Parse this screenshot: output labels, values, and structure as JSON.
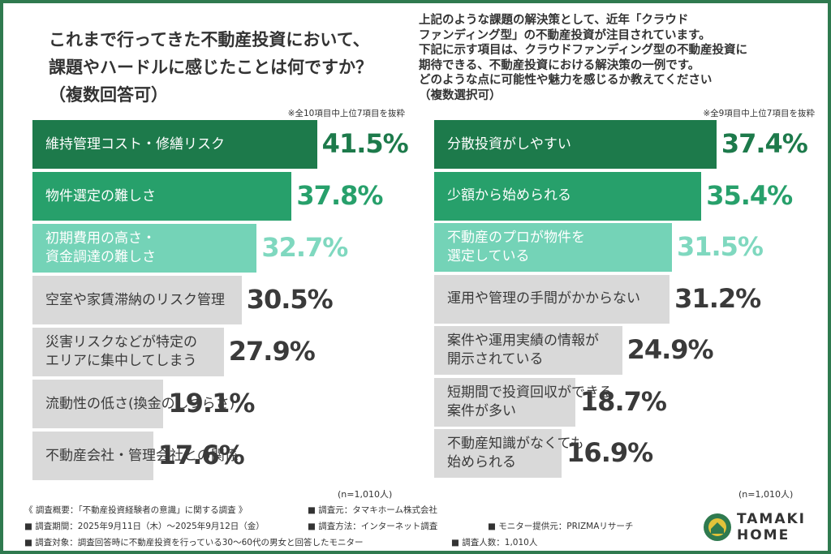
{
  "chart_data": [
    {
      "type": "bar",
      "orientation": "horizontal",
      "title": "これまで行ってきた不動産投資において、\n課題やハードルに感じたことは何ですか？\n（複数回答可）",
      "note": "※全10項目中上位7項目を抜粋",
      "sample": "(n=1,010人)",
      "categories": [
        "維持管理コスト・修繕リスク",
        "物件選定の難しさ",
        "初期費用の高さ・\n資金調達の難しさ",
        "空室や家賃滞納のリスク管理",
        "災害リスクなどが特定の\nエリアに集中してしまう",
        "流動性の低さ(換金のしづらさ)",
        "不動産会社・管理会社との関係"
      ],
      "values": [
        41.5,
        37.8,
        32.7,
        30.5,
        27.9,
        19.1,
        17.6
      ],
      "value_labels": [
        "41.5%",
        "37.8%",
        "32.7%",
        "30.5%",
        "27.9%",
        "19.1%",
        "17.6%"
      ],
      "colors": [
        "#1d7a4b",
        "#27a06b",
        "#74d3b7",
        "#d9d9d9",
        "#d9d9d9",
        "#d9d9d9",
        "#d9d9d9"
      ],
      "text_colors": [
        "#ffffff",
        "#ffffff",
        "#ffffff",
        "#3a3a3a",
        "#3a3a3a",
        "#3a3a3a",
        "#3a3a3a"
      ],
      "label_colors": [
        "#1d7a4b",
        "#27a06b",
        "#7fd8bf",
        "#3a3a3a",
        "#3a3a3a",
        "#3a3a3a",
        "#3a3a3a"
      ]
    },
    {
      "type": "bar",
      "orientation": "horizontal",
      "title": "上記のような課題の解決策として、近年「クラウド\nファンディング型」の不動産投資が注目されています。\n下記に示す項目は、クラウドファンディング型の不動産投資に\n期待できる、不動産投資における解決策の一例です。\nどのような点に可能性や魅力を感じるか教えてください\n（複数選択可）",
      "note": "※全9項目中上位7項目を抜粋",
      "sample": "(n=1,010人)",
      "categories": [
        "分散投資がしやすい",
        "少額から始められる",
        "不動産のプロが物件を\n選定している",
        "運用や管理の手間がかからない",
        "案件や運用実績の情報が\n開示されている",
        "短期間で投資回収ができる\n案件が多い",
        "不動産知識がなくても\n始められる"
      ],
      "values": [
        37.4,
        35.4,
        31.5,
        31.2,
        24.9,
        18.7,
        16.9
      ],
      "value_labels": [
        "37.4%",
        "35.4%",
        "31.5%",
        "31.2%",
        "24.9%",
        "18.7%",
        "16.9%"
      ],
      "colors": [
        "#1d7a4b",
        "#27a06b",
        "#74d3b7",
        "#d9d9d9",
        "#d9d9d9",
        "#d9d9d9",
        "#d9d9d9"
      ],
      "text_colors": [
        "#ffffff",
        "#ffffff",
        "#ffffff",
        "#3a3a3a",
        "#3a3a3a",
        "#3a3a3a",
        "#3a3a3a"
      ],
      "label_colors": [
        "#1d7a4b",
        "#27a06b",
        "#7fd8bf",
        "#3a3a3a",
        "#3a3a3a",
        "#3a3a3a",
        "#3a3a3a"
      ]
    }
  ],
  "footer": [
    "《 調査概要：「不動産投資経験者の意識」に関する調査 》",
    "調査元：タマキホーム株式会社",
    "調査期間：2025年9月11日（木）～2025年9月12日（金）",
    "調査方法：インターネット調査",
    "モニター提供元：PRIZMAリサーチ",
    "調査対象：調査回答時に不動産投資を行っている30～60代の男女と回答したモニター",
    "調査人数：1,010人"
  ],
  "logo": "TAMAKI\nHOME"
}
